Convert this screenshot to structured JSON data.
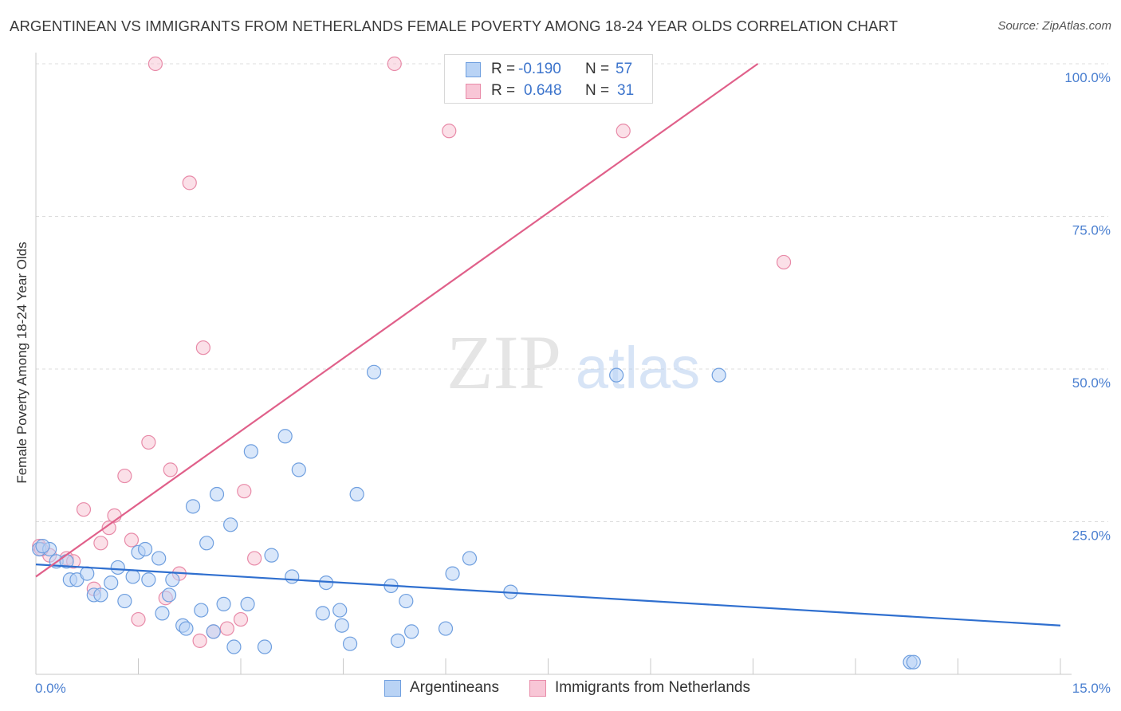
{
  "title": "ARGENTINEAN VS IMMIGRANTS FROM NETHERLANDS FEMALE POVERTY AMONG 18-24 YEAR OLDS CORRELATION CHART",
  "source": "Source: ZipAtlas.com",
  "watermark": {
    "zip": "ZIP",
    "atlas": "atlas"
  },
  "legend_stats": [
    {
      "r_label": "R =",
      "r_value": "-0.190",
      "n_label": "N =",
      "n_value": "57"
    },
    {
      "r_label": "R =",
      "r_value": "0.648",
      "n_label": "N =",
      "n_value": "31"
    }
  ],
  "colors": {
    "blue_fill": "#b9d3f5",
    "blue_stroke": "#6f9fdf",
    "blue_line": "#2f6fcf",
    "pink_fill": "#f8c6d6",
    "pink_stroke": "#e88aa8",
    "pink_line": "#e0608a",
    "grid": "#dcdcdc",
    "axis_text": "#4a7fd0"
  },
  "chart_data": {
    "type": "scatter",
    "title": "ARGENTINEAN VS IMMIGRANTS FROM NETHERLANDS FEMALE POVERTY AMONG 18-24 YEAR OLDS CORRELATION CHART",
    "xlabel": "",
    "ylabel": "Female Poverty Among 18-24 Year Olds",
    "xlim": [
      0,
      15
    ],
    "ylim": [
      0,
      100
    ],
    "x_tick_labels": [
      {
        "value": 0,
        "label": "0.0%"
      },
      {
        "value": 15,
        "label": "15.0%"
      }
    ],
    "y_tick_labels": [
      {
        "value": 25,
        "label": "25.0%"
      },
      {
        "value": 50,
        "label": "50.0%"
      },
      {
        "value": 75,
        "label": "75.0%"
      },
      {
        "value": 100,
        "label": "100.0%"
      }
    ],
    "grid": true,
    "legend_position": "bottom",
    "series": [
      {
        "name": "Argentineans",
        "color": "#6f9fdf",
        "points": [
          [
            0.05,
            20.5
          ],
          [
            0.2,
            20.5
          ],
          [
            0.3,
            18.5
          ],
          [
            0.45,
            18.5
          ],
          [
            0.5,
            15.5
          ],
          [
            0.6,
            15.5
          ],
          [
            0.75,
            16.5
          ],
          [
            0.85,
            13.0
          ],
          [
            0.95,
            13.0
          ],
          [
            1.1,
            15.0
          ],
          [
            1.2,
            17.5
          ],
          [
            1.3,
            12.0
          ],
          [
            1.42,
            16.0
          ],
          [
            1.5,
            20.0
          ],
          [
            1.6,
            20.5
          ],
          [
            1.65,
            15.5
          ],
          [
            1.8,
            19.0
          ],
          [
            1.85,
            10.0
          ],
          [
            1.95,
            13.0
          ],
          [
            2.0,
            15.5
          ],
          [
            2.15,
            8.0
          ],
          [
            2.2,
            7.5
          ],
          [
            2.3,
            27.5
          ],
          [
            2.42,
            10.5
          ],
          [
            2.5,
            21.5
          ],
          [
            2.6,
            7.0
          ],
          [
            2.65,
            29.5
          ],
          [
            2.75,
            11.5
          ],
          [
            2.85,
            24.5
          ],
          [
            2.9,
            4.5
          ],
          [
            3.1,
            11.5
          ],
          [
            3.15,
            36.5
          ],
          [
            3.35,
            4.5
          ],
          [
            3.45,
            19.5
          ],
          [
            3.65,
            39.0
          ],
          [
            3.75,
            16.0
          ],
          [
            3.85,
            33.5
          ],
          [
            4.2,
            10.0
          ],
          [
            4.25,
            15.0
          ],
          [
            4.45,
            10.5
          ],
          [
            4.48,
            8.0
          ],
          [
            4.6,
            5.0
          ],
          [
            4.7,
            29.5
          ],
          [
            4.95,
            49.5
          ],
          [
            5.2,
            14.5
          ],
          [
            5.3,
            5.5
          ],
          [
            5.42,
            12.0
          ],
          [
            5.5,
            7.0
          ],
          [
            6.0,
            7.5
          ],
          [
            6.1,
            16.5
          ],
          [
            6.35,
            19.0
          ],
          [
            6.95,
            13.5
          ],
          [
            8.5,
            49.0
          ],
          [
            10.0,
            49.0
          ],
          [
            12.8,
            2.0
          ],
          [
            12.85,
            2.0
          ],
          [
            0.1,
            21.0
          ]
        ]
      },
      {
        "name": "Immigrants from Netherlands",
        "color": "#e88aa8",
        "points": [
          [
            0.05,
            21.0
          ],
          [
            0.2,
            19.5
          ],
          [
            0.45,
            19.0
          ],
          [
            0.55,
            18.5
          ],
          [
            0.7,
            27.0
          ],
          [
            0.85,
            14.0
          ],
          [
            0.95,
            21.5
          ],
          [
            1.07,
            24.0
          ],
          [
            1.15,
            26.0
          ],
          [
            1.3,
            32.5
          ],
          [
            1.4,
            22.0
          ],
          [
            1.5,
            9.0
          ],
          [
            1.65,
            38.0
          ],
          [
            1.75,
            100.0
          ],
          [
            1.9,
            12.5
          ],
          [
            1.97,
            33.5
          ],
          [
            2.1,
            16.5
          ],
          [
            2.25,
            80.5
          ],
          [
            2.4,
            5.5
          ],
          [
            2.45,
            53.5
          ],
          [
            2.6,
            7.0
          ],
          [
            2.8,
            7.5
          ],
          [
            3.0,
            9.0
          ],
          [
            3.05,
            30.0
          ],
          [
            3.2,
            19.0
          ],
          [
            5.25,
            100.0
          ],
          [
            6.05,
            89.0
          ],
          [
            7.8,
            100.0
          ],
          [
            8.6,
            89.0
          ],
          [
            10.95,
            67.5
          ],
          [
            0.08,
            20.5
          ]
        ]
      }
    ],
    "trend_lines": [
      {
        "series": "Argentineans",
        "x": [
          0,
          15
        ],
        "y": [
          18.0,
          8.0
        ]
      },
      {
        "series": "Immigrants from Netherlands",
        "x": [
          0,
          10.57
        ],
        "y": [
          16.0,
          100.0
        ]
      }
    ],
    "stats": [
      {
        "series": "Argentineans",
        "R": -0.19,
        "N": 57
      },
      {
        "series": "Immigrants from Netherlands",
        "R": 0.648,
        "N": 31
      }
    ]
  }
}
